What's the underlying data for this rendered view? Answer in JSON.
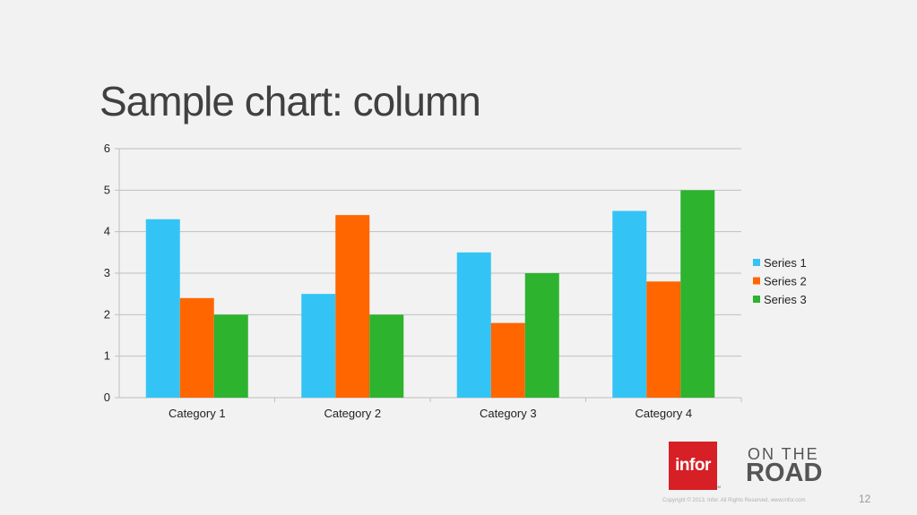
{
  "slide": {
    "title": "Sample chart: column",
    "copyright": "Copyright © 2013. Infor. All Rights Reserved. www.infor.com",
    "page_number": "12"
  },
  "branding": {
    "logo_text": "infor",
    "trademark": "TM",
    "tagline_line1": "ON THE",
    "tagline_line2": "ROAD",
    "logo_color": "#d71f26"
  },
  "chart_data": {
    "type": "bar",
    "categories": [
      "Category 1",
      "Category 2",
      "Category 3",
      "Category 4"
    ],
    "series": [
      {
        "name": "Series 1",
        "values": [
          4.3,
          2.5,
          3.5,
          4.5
        ],
        "color": "#33c4f5"
      },
      {
        "name": "Series 2",
        "values": [
          2.4,
          4.4,
          1.8,
          2.8
        ],
        "color": "#ff6600"
      },
      {
        "name": "Series 3",
        "values": [
          2,
          2,
          3,
          5
        ],
        "color": "#2db32d"
      }
    ],
    "ylim": [
      0,
      6
    ],
    "yticks": [
      "0",
      "1",
      "2",
      "3",
      "4",
      "5",
      "6"
    ],
    "grid": true,
    "legend_position": "right"
  }
}
